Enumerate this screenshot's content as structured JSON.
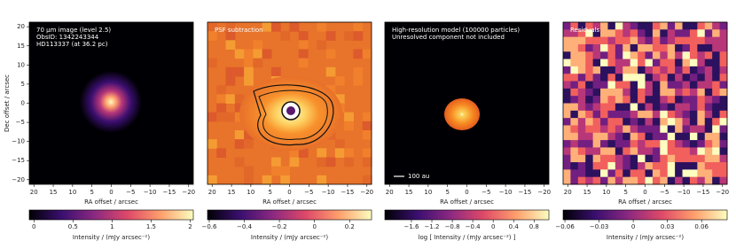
{
  "x_axis": {
    "label": "RA offset / arcsec",
    "lim": [
      21.2,
      -21.2
    ],
    "ticks": [
      20,
      15,
      10,
      5,
      0,
      {
        "value": -5,
        "label": "−5"
      },
      {
        "value": -10,
        "label": "−10"
      },
      {
        "value": -15,
        "label": "−15"
      },
      {
        "value": -20,
        "label": "−20"
      }
    ]
  },
  "y_axis": {
    "label": "Dec offset / arcsec",
    "lim": [
      -21.2,
      21.2
    ],
    "ticks": [
      20,
      15,
      10,
      5,
      0,
      {
        "value": -5,
        "label": "−5"
      },
      {
        "value": -10,
        "label": "−10"
      },
      {
        "value": -15,
        "label": "−15"
      },
      {
        "value": -20,
        "label": "−20"
      }
    ]
  },
  "panels": [
    {
      "annotation": [
        "70 µm image (level 2.5)",
        "ObsID: 1342243344",
        "HD113337 (at 36.2 pc)"
      ],
      "colorbar": {
        "label": "Intensity / (mJy arcsec⁻²)",
        "lim": [
          -0.06,
          2.04
        ],
        "ticks": [
          0,
          0.5,
          1,
          1.5,
          2
        ]
      }
    },
    {
      "annotation": [
        "PSF subtraction"
      ],
      "colorbar": {
        "label": "Intensity / (mJy arcsec⁻²)",
        "lim": [
          -0.61,
          0.325
        ],
        "ticks": [
          {
            "value": -0.6,
            "label": "−0.6"
          },
          {
            "value": -0.4,
            "label": "−0.4"
          },
          {
            "value": -0.2,
            "label": "−0.2"
          },
          0,
          0.2
        ]
      }
    },
    {
      "annotation": [
        "High-resolution model (100000 particles)",
        "Unresolved component not included"
      ],
      "scale_bar": "100 au",
      "colorbar": {
        "label": "log [ Intensity / (mJy arcsec⁻²) ]",
        "lim": [
          -2.12,
          1.09
        ],
        "ticks": [
          {
            "value": -1.6,
            "label": "−1.6"
          },
          {
            "value": -1.2,
            "label": "−1.2"
          },
          {
            "value": -0.8,
            "label": "−0.8"
          },
          {
            "value": -0.4,
            "label": "−0.4"
          },
          0,
          0.4,
          0.8
        ]
      }
    },
    {
      "annotation": [
        "Residuals"
      ],
      "colorbar": {
        "label": "Intensity / (mJy arcsec⁻²)",
        "lim": [
          -0.0616,
          0.0824
        ],
        "ticks": [
          {
            "value": -0.06,
            "label": "−0.06"
          },
          {
            "value": -0.03,
            "label": "−0.03"
          },
          0,
          0.03,
          0.06
        ]
      }
    }
  ]
}
